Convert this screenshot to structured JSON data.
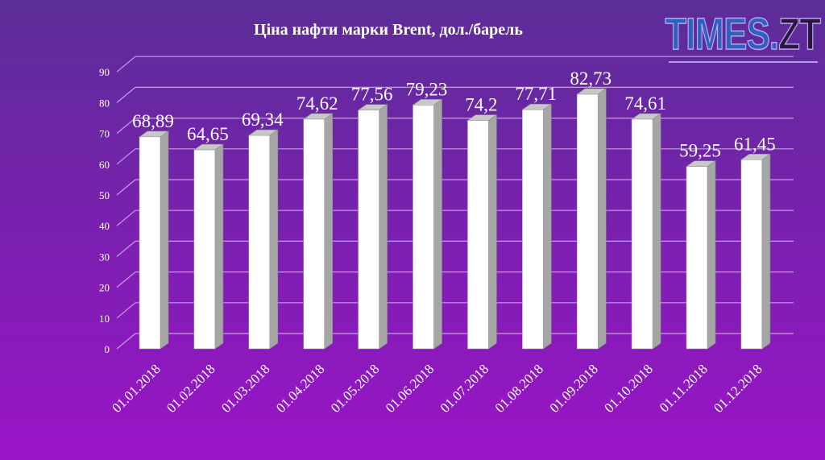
{
  "chart_data": {
    "type": "bar",
    "title": "Ціна нафти марки Brent, дол./барель",
    "categories": [
      "01.01.2018",
      "01.02.2018",
      "01.03.2018",
      "01.04.2018",
      "01.05.2018",
      "01.06.2018",
      "01.07.2018",
      "01.08.2018",
      "01.09.2018",
      "01.10.2018",
      "01.11.2018",
      "01.12.2018"
    ],
    "values": [
      68.89,
      64.65,
      69.34,
      74.62,
      77.56,
      79.23,
      74.2,
      77.71,
      82.73,
      74.61,
      59.25,
      61.45
    ],
    "value_labels": [
      "68,89",
      "64,65",
      "69,34",
      "74,62",
      "77,56",
      "79,23",
      "74,2",
      "77,71",
      "82,73",
      "74,61",
      "59,25",
      "61,45"
    ],
    "ylim": [
      0,
      90
    ],
    "yticks": [
      "0",
      "10",
      "20",
      "30",
      "40",
      "50",
      "60",
      "70",
      "80",
      "90"
    ],
    "xlabel": "",
    "ylabel": "",
    "grid": true,
    "legend": "none",
    "bar_color": "#ffffff",
    "bar_side_color": "#a6a6a6"
  },
  "logo": {
    "part1": "TIMES.",
    "part2": "ZT"
  }
}
